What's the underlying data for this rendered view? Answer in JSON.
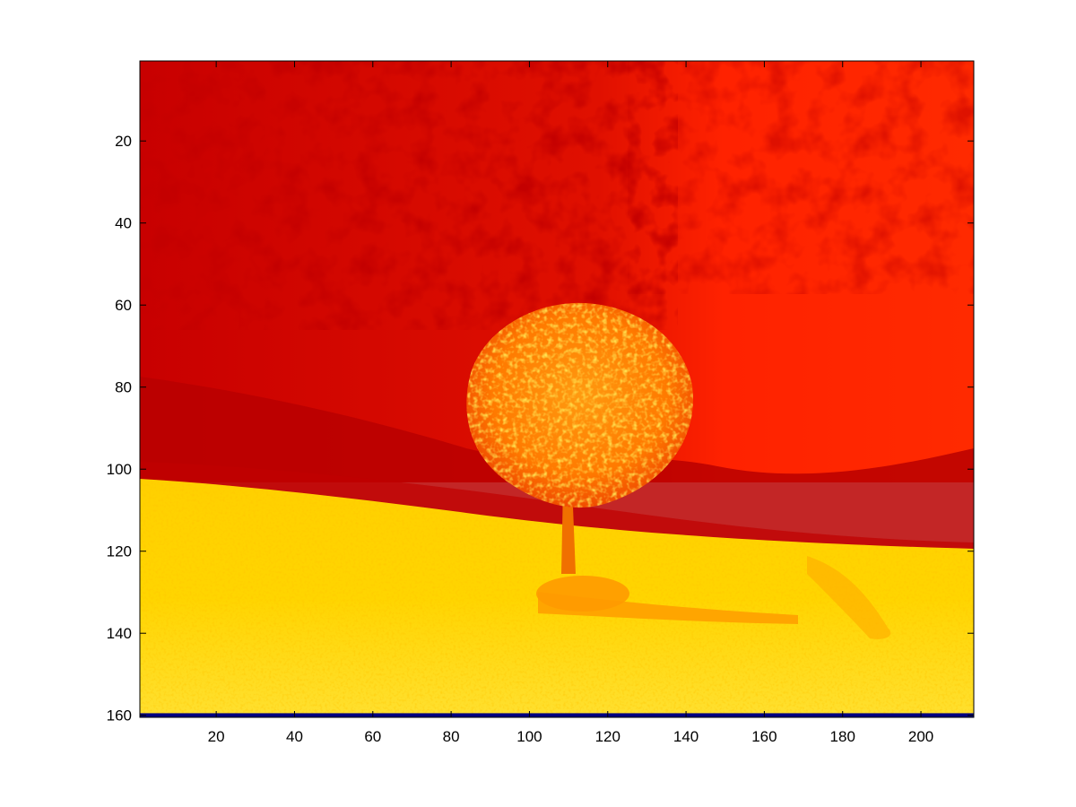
{
  "chart_data": {
    "type": "heatmap",
    "title": "",
    "xlabel": "",
    "ylabel": "",
    "xlim": [
      0.5,
      213.5
    ],
    "ylim": [
      0.5,
      160.5
    ],
    "y_reversed": true,
    "x_ticks": [
      20,
      40,
      60,
      80,
      100,
      120,
      140,
      160,
      180,
      200
    ],
    "y_ticks": [
      20,
      40,
      60,
      80,
      100,
      120,
      140,
      160
    ],
    "colormap": "hot",
    "image_size": {
      "columns": 213,
      "rows": 160
    },
    "last_row_color": "#000080",
    "colors": {
      "deep_red": "#b00000",
      "red": "#ff1a00",
      "orange": "#ff7a00",
      "yellow": "#ffd700",
      "pale_yellow": "#ffe84a"
    }
  }
}
